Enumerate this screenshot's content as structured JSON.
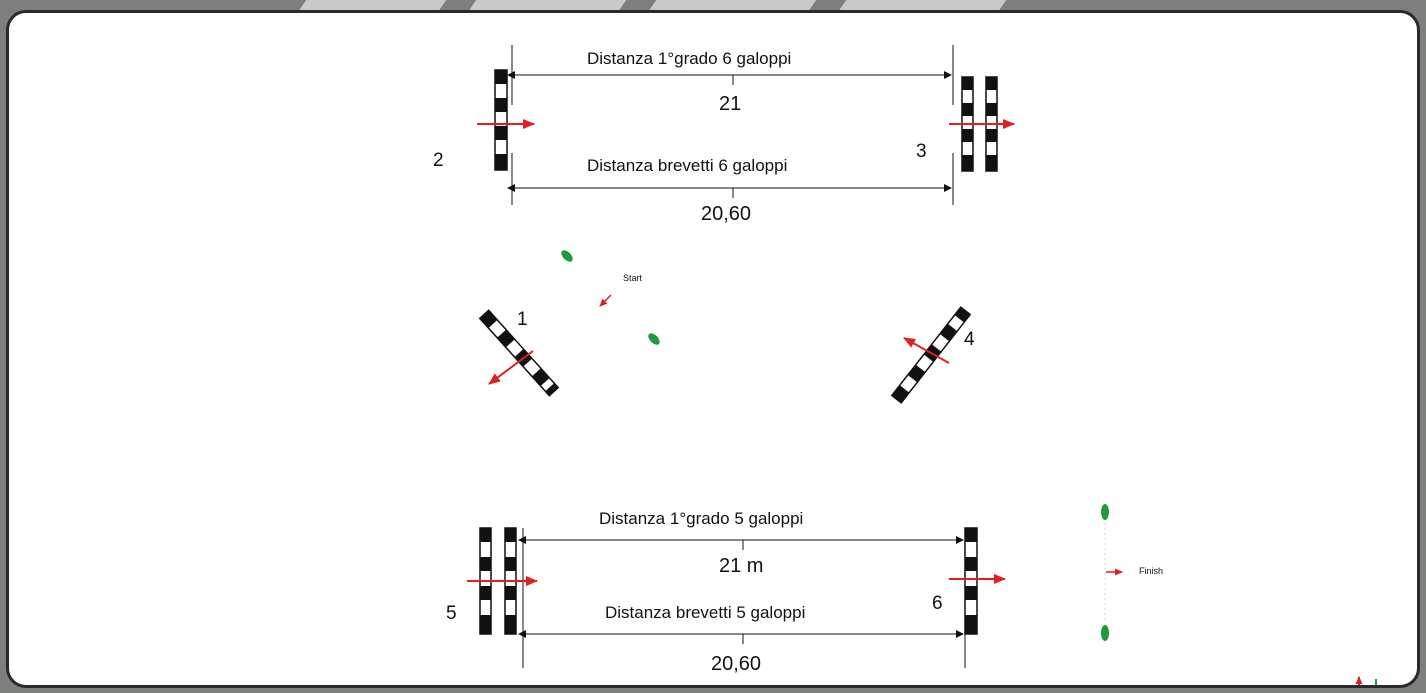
{
  "top": {
    "label_first_grade": "Distanza 1°grado 6 galoppi",
    "value_first_grade": "21",
    "label_brevetti": "Distanza brevetti 6 galoppi",
    "value_brevetti": "20,60"
  },
  "bottom": {
    "label_first_grade": "Distanza 1°grado 5 galoppi",
    "value_first_grade": "21 m",
    "label_brevetti": "Distanza brevetti 5 galoppi",
    "value_brevetti": "20,60"
  },
  "fences": {
    "f1": "1",
    "f2": "2",
    "f3": "3",
    "f4": "4",
    "f5": "5",
    "f6": "6"
  },
  "markers": {
    "start": "Start",
    "finish": "Finish"
  },
  "colors": {
    "arrow": "#e02020",
    "horse": "#1e9a3a",
    "fence": "#111111"
  }
}
